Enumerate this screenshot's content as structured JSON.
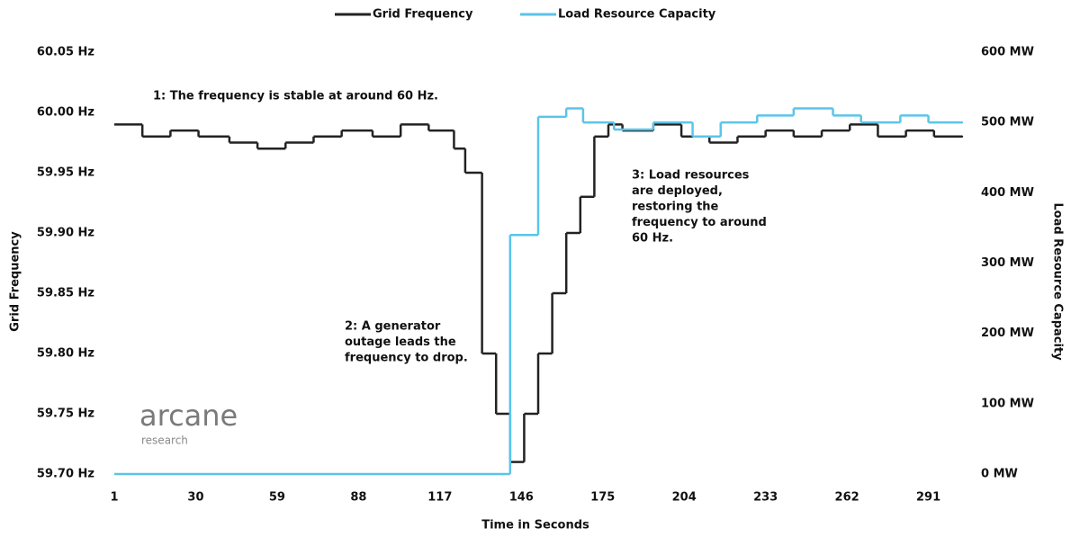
{
  "chart_data": {
    "type": "line",
    "line_style": "step",
    "xlabel": "Time in Seconds",
    "ylabel": "Grid Frequency",
    "y2label": "Load Resource Capacity",
    "xlim": [
      1,
      303
    ],
    "xticks": [
      1,
      30,
      59,
      88,
      117,
      146,
      175,
      204,
      233,
      262,
      291
    ],
    "ylim": [
      59.7,
      60.05
    ],
    "yticks": [
      {
        "value": 59.7,
        "label": "59.70 Hz"
      },
      {
        "value": 59.75,
        "label": "59.75 Hz"
      },
      {
        "value": 59.8,
        "label": "59.80 Hz"
      },
      {
        "value": 59.85,
        "label": "59.85 Hz"
      },
      {
        "value": 59.9,
        "label": "59.90 Hz"
      },
      {
        "value": 59.95,
        "label": "59.95 Hz"
      },
      {
        "value": 60.0,
        "label": "60.00 Hz"
      },
      {
        "value": 60.05,
        "label": "60.05 Hz"
      }
    ],
    "y2lim": [
      0,
      600
    ],
    "y2ticks": [
      {
        "value": 0,
        "label": "0 MW"
      },
      {
        "value": 100,
        "label": "100 MW"
      },
      {
        "value": 200,
        "label": "200 MW"
      },
      {
        "value": 300,
        "label": "300 MW"
      },
      {
        "value": 400,
        "label": "400 MW"
      },
      {
        "value": 500,
        "label": "500 MW"
      },
      {
        "value": 600,
        "label": "600 MW"
      }
    ],
    "grid": false,
    "legend": "top",
    "series": [
      {
        "name": "Grid Frequency",
        "color": "#222222",
        "x": [
          1,
          11,
          21,
          31,
          42,
          52,
          62,
          72,
          82,
          93,
          103,
          113,
          122,
          126,
          132,
          137,
          142,
          147,
          152,
          157,
          162,
          167,
          172,
          177,
          182,
          193,
          203,
          213,
          223,
          233,
          243,
          253,
          263,
          273,
          283,
          293,
          303
        ],
        "values": [
          59.99,
          59.98,
          59.985,
          59.98,
          59.975,
          59.97,
          59.975,
          59.98,
          59.985,
          59.98,
          59.99,
          59.985,
          59.97,
          59.95,
          59.8,
          59.75,
          59.71,
          59.75,
          59.8,
          59.85,
          59.9,
          59.93,
          59.98,
          59.99,
          59.985,
          59.99,
          59.98,
          59.975,
          59.98,
          59.985,
          59.98,
          59.985,
          59.99,
          59.98,
          59.985,
          59.98,
          59.98
        ]
      },
      {
        "name": "Load Resource Capacity",
        "color": "#5bc4ea",
        "axis": "y2",
        "x": [
          1,
          142,
          152,
          162,
          168,
          179,
          193,
          207,
          217,
          230,
          243,
          257,
          267,
          281,
          291,
          303
        ],
        "values": [
          0,
          340,
          508,
          520,
          500,
          490,
          500,
          480,
          500,
          510,
          520,
          510,
          500,
          510,
          500,
          500
        ]
      }
    ],
    "annotations": [
      {
        "lines": [
          "1: The frequency is stable at around 60 Hz."
        ]
      },
      {
        "lines": [
          "2: A generator",
          "outage leads the",
          "frequency to drop."
        ]
      },
      {
        "lines": [
          "3: Load resources",
          "are deployed,",
          "restoring the",
          "frequency to around",
          "60 Hz."
        ]
      }
    ],
    "logo": {
      "name": "arcane",
      "tagline": "research"
    }
  }
}
